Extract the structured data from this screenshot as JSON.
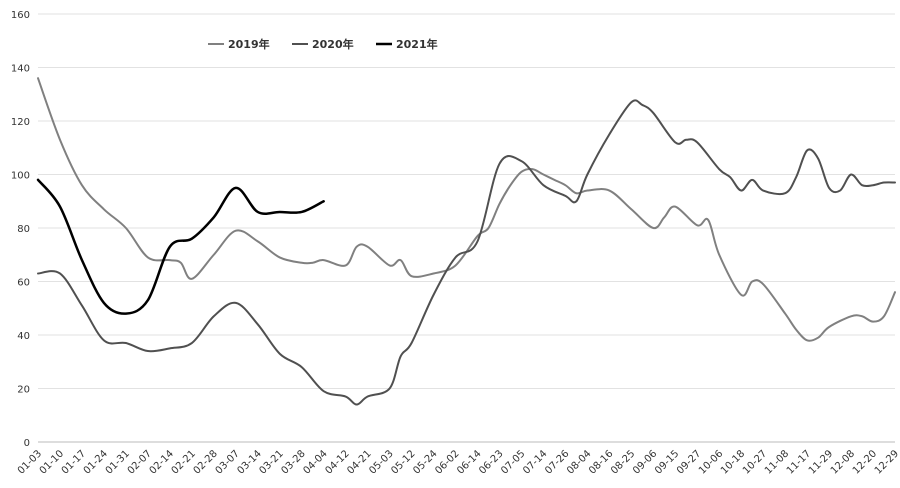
{
  "chart_data": {
    "type": "line",
    "title": "",
    "xlabel": "",
    "ylabel": "",
    "ylim": [
      0,
      160
    ],
    "yticks": [
      0,
      20,
      40,
      60,
      80,
      100,
      120,
      140,
      160
    ],
    "grid": "horizontal",
    "legend_position": "top-left",
    "x_tick_labels": [
      "01-03",
      "01-10",
      "01-17",
      "01-24",
      "01-31",
      "02-07",
      "02-14",
      "02-21",
      "02-28",
      "03-07",
      "03-14",
      "03-21",
      "03-28",
      "04-04",
      "04-12",
      "04-21",
      "05-03",
      "05-12",
      "05-24",
      "06-02",
      "06-14",
      "06-23",
      "07-05",
      "07-14",
      "07-26",
      "08-04",
      "08-16",
      "08-25",
      "09-06",
      "09-15",
      "09-27",
      "10-06",
      "10-18",
      "10-27",
      "11-08",
      "11-17",
      "11-29",
      "12-08",
      "12-20",
      "12-29"
    ],
    "series": [
      {
        "name": "2019年",
        "color": "#808080",
        "width": 2,
        "x": [
          1,
          2,
          3,
          4,
          5,
          6,
          7,
          7.5,
          8,
          9,
          10,
          11,
          12,
          13,
          13.5,
          14,
          15,
          15.5,
          16,
          17,
          17.5,
          18,
          19,
          20,
          21,
          21.5,
          22,
          22.5,
          23,
          23.5,
          24,
          24.5,
          25,
          25.5,
          26,
          27,
          28,
          29,
          29.5,
          30,
          31,
          31.5,
          32,
          33,
          33.5,
          34,
          35,
          35.5,
          36,
          36.5,
          37,
          38,
          38.5,
          39,
          39.5,
          40
        ],
        "values": [
          136,
          113,
          96,
          87,
          80,
          69,
          68,
          67,
          61,
          70,
          79,
          75,
          69,
          67,
          67,
          68,
          66,
          73,
          73,
          66,
          68,
          62,
          63,
          66,
          77,
          80,
          89,
          96,
          101,
          102,
          100,
          98,
          96,
          93,
          94,
          94,
          87,
          80,
          84,
          88,
          81,
          83,
          70,
          55,
          60,
          59,
          48,
          42,
          38,
          39,
          43,
          47,
          47,
          45,
          47,
          56
        ]
      },
      {
        "name": "2020年",
        "color": "#505050",
        "width": 2,
        "x": [
          1,
          2,
          3,
          4,
          5,
          6,
          7,
          8,
          9,
          10,
          11,
          12,
          13,
          14,
          15,
          15.5,
          16,
          17,
          17.5,
          18,
          19,
          20,
          21,
          22,
          23,
          24,
          25,
          25.5,
          26,
          27,
          28,
          28.5,
          29,
          30,
          30.5,
          31,
          32,
          32.5,
          33,
          33.5,
          34,
          35,
          35.5,
          36,
          36.5,
          37,
          37.5,
          38,
          38.5,
          39,
          39.5,
          40
        ],
        "values": [
          63,
          63,
          51,
          38,
          37,
          34,
          35,
          37,
          47,
          52,
          44,
          33,
          28,
          19,
          17,
          14,
          17,
          20,
          32,
          37,
          55,
          69,
          75,
          104,
          105,
          96,
          92,
          90,
          100,
          115,
          127,
          126,
          123,
          112,
          113,
          112,
          102,
          99,
          94,
          98,
          94,
          93,
          99,
          109,
          106,
          95,
          94,
          100,
          96,
          96,
          97,
          97
        ]
      },
      {
        "name": "2021年",
        "color": "#000000",
        "width": 2.5,
        "x": [
          1,
          2,
          3,
          4,
          5,
          6,
          7,
          8,
          9,
          10,
          11,
          12,
          13,
          14
        ],
        "values": [
          98,
          88,
          68,
          52,
          48,
          53,
          73,
          76,
          84,
          95,
          86,
          86,
          86,
          90
        ]
      }
    ]
  }
}
